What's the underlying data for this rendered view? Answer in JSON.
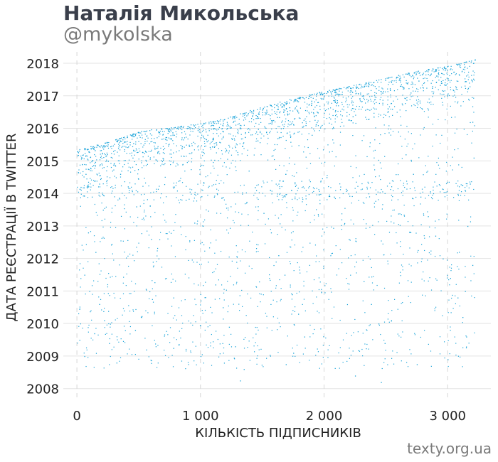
{
  "header": {
    "title": "Наталія Микольська",
    "subtitle": "@mykolska"
  },
  "footer": {
    "source": "texty.org.ua"
  },
  "chart_data": {
    "type": "scatter",
    "title": "Наталія Микольська",
    "subtitle": "@mykolska",
    "xlabel": "КІЛЬКІСТЬ ПІДПИСНИКІВ",
    "ylabel": "ДАТА РЕЄСТРАЦІЇ В TWITTER",
    "xlim": [
      -110,
      3350
    ],
    "ylim": [
      2007.6,
      2018.35
    ],
    "x_ticks": [
      0,
      1000,
      2000,
      3000
    ],
    "x_tick_labels": [
      "0",
      "1 000",
      "2 000",
      "3 000"
    ],
    "y_ticks": [
      2008,
      2009,
      2010,
      2011,
      2012,
      2013,
      2014,
      2015,
      2016,
      2017,
      2018
    ],
    "y_tick_labels": [
      "2008",
      "2009",
      "2010",
      "2011",
      "2012",
      "2013",
      "2014",
      "2015",
      "2016",
      "2017",
      "2018"
    ],
    "grid": true,
    "point_color": "#1aa3d9",
    "n_points": 3220,
    "frontier": [
      [
        0,
        2015.3
      ],
      [
        300,
        2015.65
      ],
      [
        500,
        2015.9
      ],
      [
        800,
        2016.05
      ],
      [
        1000,
        2016.15
      ],
      [
        1200,
        2016.3
      ],
      [
        1500,
        2016.65
      ],
      [
        1800,
        2016.95
      ],
      [
        2000,
        2017.15
      ],
      [
        2200,
        2017.3
      ],
      [
        2500,
        2017.55
      ],
      [
        2800,
        2017.8
      ],
      [
        3000,
        2017.92
      ],
      [
        3220,
        2018.12
      ]
    ],
    "series": [
      {
        "points": [
          [
            0,
            2015.3
          ],
          [
            20,
            2015.36
          ],
          [
            60,
            2015.4
          ],
          [
            110,
            2015.45
          ],
          [
            160,
            2015.5
          ],
          [
            240,
            2015.58
          ],
          [
            310,
            2015.66
          ],
          [
            380,
            2015.74
          ],
          [
            450,
            2015.83
          ],
          [
            520,
            2015.92
          ],
          [
            600,
            2015.97
          ],
          [
            680,
            2016.0
          ],
          [
            760,
            2016.03
          ],
          [
            840,
            2016.08
          ],
          [
            920,
            2016.12
          ],
          [
            1000,
            2016.15
          ],
          [
            1080,
            2016.22
          ],
          [
            1160,
            2016.28
          ],
          [
            1240,
            2016.36
          ],
          [
            1320,
            2016.46
          ],
          [
            1400,
            2016.56
          ],
          [
            1480,
            2016.64
          ],
          [
            1560,
            2016.73
          ],
          [
            1640,
            2016.82
          ],
          [
            1720,
            2016.9
          ],
          [
            1800,
            2016.96
          ],
          [
            1880,
            2017.04
          ],
          [
            1960,
            2017.12
          ],
          [
            2040,
            2017.18
          ],
          [
            2120,
            2017.24
          ],
          [
            2200,
            2017.3
          ],
          [
            2280,
            2017.36
          ],
          [
            2360,
            2017.43
          ],
          [
            2440,
            2017.5
          ],
          [
            2520,
            2017.57
          ],
          [
            2600,
            2017.64
          ],
          [
            2680,
            2017.71
          ],
          [
            2760,
            2017.77
          ],
          [
            2840,
            2017.82
          ],
          [
            2920,
            2017.87
          ],
          [
            3000,
            2017.92
          ],
          [
            3080,
            2017.98
          ],
          [
            3150,
            2018.05
          ],
          [
            3220,
            2018.12
          ],
          [
            40,
            2014.9
          ],
          [
            70,
            2014.6
          ],
          [
            30,
            2014.2
          ],
          [
            120,
            2013.9
          ],
          [
            180,
            2014.3
          ],
          [
            210,
            2013.5
          ],
          [
            90,
            2012.8
          ],
          [
            150,
            2012.2
          ],
          [
            60,
            2011.5
          ],
          [
            100,
            2011.0
          ],
          [
            180,
            2010.6
          ],
          [
            220,
            2010.1
          ],
          [
            140,
            2009.7
          ],
          [
            260,
            2009.4
          ],
          [
            320,
            2008.8
          ],
          [
            60,
            2009.0
          ],
          [
            20,
            2009.5
          ],
          [
            350,
            2014.6
          ],
          [
            420,
            2014.1
          ],
          [
            480,
            2013.6
          ],
          [
            540,
            2013.2
          ],
          [
            600,
            2012.6
          ],
          [
            660,
            2012.0
          ],
          [
            720,
            2011.4
          ],
          [
            780,
            2010.8
          ],
          [
            520,
            2010.2
          ],
          [
            470,
            2009.8
          ],
          [
            560,
            2009.2
          ],
          [
            640,
            2015.4
          ],
          [
            700,
            2014.9
          ],
          [
            760,
            2015.7
          ],
          [
            830,
            2014.4
          ],
          [
            880,
            2013.8
          ],
          [
            950,
            2013.1
          ],
          [
            1010,
            2012.5
          ],
          [
            1060,
            2011.9
          ],
          [
            1120,
            2011.2
          ],
          [
            1180,
            2010.5
          ],
          [
            1230,
            2009.9
          ],
          [
            1280,
            2009.3
          ],
          [
            1320,
            2008.25
          ],
          [
            1350,
            2008.6
          ],
          [
            1300,
            2015.2
          ],
          [
            1390,
            2014.7
          ],
          [
            1450,
            2014.1
          ],
          [
            1510,
            2013.4
          ],
          [
            1570,
            2012.8
          ],
          [
            1630,
            2012.1
          ],
          [
            1680,
            2011.5
          ],
          [
            1740,
            2010.9
          ],
          [
            1790,
            2010.3
          ],
          [
            1840,
            2009.6
          ],
          [
            1690,
            2008.75
          ],
          [
            1900,
            2015.8
          ],
          [
            1960,
            2015.1
          ],
          [
            2020,
            2014.5
          ],
          [
            2080,
            2013.9
          ],
          [
            2140,
            2013.2
          ],
          [
            2200,
            2012.6
          ],
          [
            2260,
            2011.9
          ],
          [
            2320,
            2011.3
          ],
          [
            2380,
            2010.6
          ],
          [
            2440,
            2010.0
          ],
          [
            2490,
            2009.4
          ],
          [
            2460,
            2008.2
          ],
          [
            2550,
            2016.6
          ],
          [
            2600,
            2015.9
          ],
          [
            2660,
            2015.2
          ],
          [
            2720,
            2014.6
          ],
          [
            2780,
            2013.9
          ],
          [
            2840,
            2013.3
          ],
          [
            2900,
            2012.7
          ],
          [
            2960,
            2012.0
          ],
          [
            3020,
            2011.4
          ],
          [
            3080,
            2010.8
          ],
          [
            3120,
            2010.2
          ],
          [
            3150,
            2009.6
          ],
          [
            3000,
            2008.9
          ],
          [
            3190,
            2017.5
          ],
          [
            3200,
            2016.2
          ],
          [
            3210,
            2015.1
          ],
          [
            3180,
            2014.3
          ],
          [
            3160,
            2013.0
          ],
          [
            3200,
            2011.8
          ],
          [
            3140,
            2011.0
          ],
          [
            2950,
            2017.4
          ],
          [
            2700,
            2017.1
          ],
          [
            2450,
            2016.9
          ],
          [
            2250,
            2016.6
          ],
          [
            2050,
            2016.3
          ],
          [
            1850,
            2016.1
          ],
          [
            1650,
            2016.0
          ],
          [
            1450,
            2015.9
          ],
          [
            1250,
            2015.7
          ],
          [
            1050,
            2015.6
          ],
          [
            850,
            2015.45
          ],
          [
            650,
            2015.25
          ],
          [
            450,
            2015.1
          ],
          [
            250,
            2015.0
          ],
          [
            2750,
            2008.75
          ],
          [
            2250,
            2008.4
          ],
          [
            1750,
            2009.1
          ],
          [
            1000,
            2009.0
          ],
          [
            780,
            2009.25
          ],
          [
            380,
            2010.4
          ]
        ]
      }
    ]
  }
}
